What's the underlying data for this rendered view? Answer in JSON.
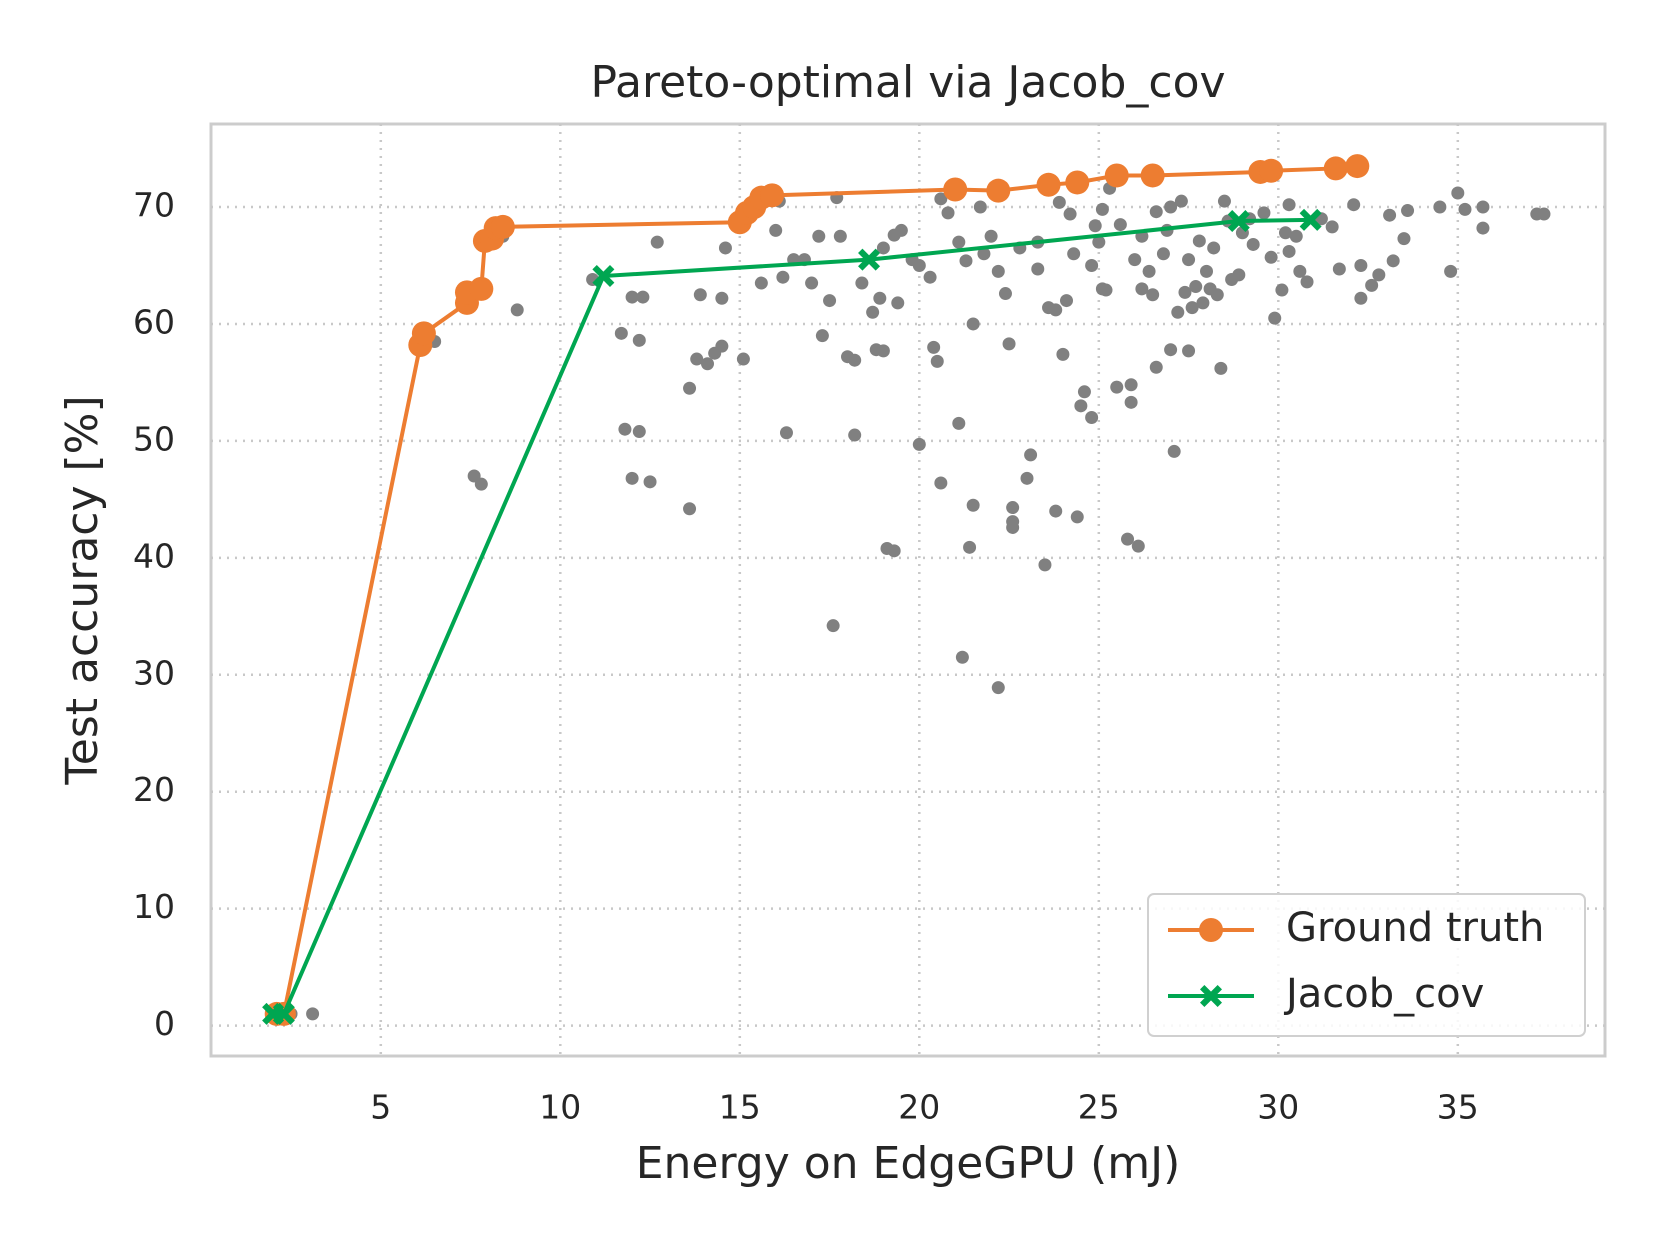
{
  "chart_data": {
    "type": "line",
    "title": "Pareto-optimal via Jacob_cov",
    "xlabel": "Energy on EdgeGPU (mJ)",
    "ylabel": "Test accuracy [%]",
    "xlim": [
      0.27,
      39.1
    ],
    "ylim": [
      -2.6,
      77.1
    ],
    "xticks": [
      5,
      10,
      15,
      20,
      25,
      30,
      35
    ],
    "yticks": [
      0,
      10,
      20,
      30,
      40,
      50,
      60,
      70
    ],
    "grid": true,
    "legend": "lower right",
    "points": {
      "color": "#808080",
      "x": [
        2.5,
        3.1,
        6.5,
        7.6,
        7.8,
        8.8,
        8.4,
        10.9,
        11.7,
        11.8,
        12,
        12.2,
        12.2,
        12,
        12.5,
        12.3,
        12.7,
        13.6,
        13.6,
        13.8,
        13.9,
        14.1,
        14.3,
        14.5,
        14.5,
        14.6,
        15.1,
        15.6,
        16,
        16.2,
        16.3,
        16.5,
        16.8,
        17,
        17.2,
        17.3,
        17.5,
        17.6,
        17.7,
        17.8,
        18,
        18.2,
        18.2,
        18.4,
        18.7,
        18.8,
        18.9,
        19,
        19,
        19.1,
        19.3,
        19.3,
        19.4,
        19.5,
        19.8,
        20,
        20,
        20.3,
        20.4,
        20.5,
        20.8,
        20.6,
        21.1,
        21.2,
        21.3,
        21.4,
        21.5,
        21.5,
        21.7,
        21.8,
        22,
        22.2,
        22.2,
        22.4,
        22.5,
        22.6,
        22.6,
        22.6,
        22.8,
        23,
        23.1,
        23.3,
        23.3,
        23.5,
        23.6,
        23.8,
        23.8,
        24,
        24.1,
        24.2,
        24.3,
        24.4,
        24.5,
        24.6,
        24.8,
        24.8,
        25,
        25.1,
        25.2,
        25.3,
        25.5,
        25.6,
        25.9,
        25.9,
        25.8,
        26.1,
        26.2,
        26.2,
        26.4,
        26.6,
        26.6,
        26.8,
        26.9,
        27,
        27.1,
        27.2,
        27.3,
        27.4,
        27.5,
        27.5,
        27.6,
        27.7,
        27.8,
        28,
        28.2,
        28.3,
        28.4,
        28.5,
        28.7,
        29,
        29.2,
        29.3,
        29.6,
        29.8,
        29.9,
        30.1,
        30.3,
        30.3,
        30.5,
        30.8,
        31.2,
        31.7,
        32.1,
        32.3,
        32.3,
        32.6,
        32.8,
        33.1,
        33.2,
        33.5,
        33.6,
        34.5,
        34.8,
        35,
        35.2,
        35.7,
        35.7,
        37.2,
        37.4,
        16.1,
        20.6,
        21.1,
        25.1,
        26.5,
        27.9,
        28.1,
        28.9,
        30.6,
        31.5,
        24.9,
        23.9,
        26.0,
        27.0,
        28.6,
        30.2
      ],
      "values": [
        1,
        1,
        58.5,
        47,
        46.3,
        61.2,
        67.5,
        63.8,
        59.2,
        51,
        62.3,
        58.6,
        50.8,
        46.8,
        46.5,
        62.3,
        67,
        54.5,
        44.2,
        57,
        62.5,
        56.6,
        57.5,
        58.1,
        62.2,
        66.5,
        57,
        63.5,
        68,
        64,
        50.7,
        65.5,
        65.5,
        63.5,
        67.5,
        59,
        62,
        34.2,
        70.8,
        67.5,
        57.2,
        56.9,
        50.5,
        63.5,
        61,
        57.8,
        62.2,
        57.7,
        66.5,
        40.8,
        40.6,
        67.6,
        61.8,
        68,
        65.5,
        65,
        49.7,
        64,
        58,
        56.8,
        69.5,
        46.4,
        51.5,
        31.5,
        65.4,
        40.9,
        60,
        44.5,
        70,
        66,
        67.5,
        64.5,
        28.9,
        62.6,
        58.3,
        44.3,
        43.1,
        42.6,
        66.5,
        46.8,
        48.8,
        67,
        64.7,
        39.4,
        61.4,
        61.2,
        44,
        57.4,
        62,
        69.4,
        66,
        43.5,
        53,
        54.2,
        65,
        52,
        67,
        69.8,
        62.9,
        71.6,
        54.6,
        68.5,
        54.8,
        53.3,
        41.6,
        41,
        67.5,
        63,
        64.5,
        56.3,
        69.6,
        66,
        68,
        57.8,
        49.1,
        61,
        70.5,
        62.7,
        65.5,
        57.7,
        61.4,
        63.2,
        67.1,
        64.5,
        66.5,
        62.5,
        56.2,
        70.5,
        63.8,
        67.8,
        69,
        66.8,
        69.5,
        65.7,
        60.5,
        62.9,
        66.2,
        70.2,
        67.5,
        63.6,
        69,
        64.7,
        70.2,
        62.2,
        65,
        63.3,
        64.2,
        69.3,
        65.4,
        67.3,
        69.7,
        70,
        64.5,
        71.2,
        69.8,
        70,
        68.2,
        69.4,
        69.4,
        70.5,
        70.7,
        67,
        63,
        62.5,
        61.8,
        63,
        64.2,
        64.5,
        68.3,
        68.4,
        70.4,
        65.5,
        70,
        68.8,
        67.8
      ]
    },
    "series": [
      {
        "name": "Ground truth",
        "color": "#ed7d31",
        "marker": "o",
        "x": [
          2.1,
          2.3,
          6.1,
          6.2,
          7.4,
          7.4,
          7.8,
          7.9,
          8.1,
          8.2,
          8.4,
          15.0,
          15.2,
          15.4,
          15.6,
          15.9,
          21.0,
          22.2,
          23.6,
          24.4,
          25.5,
          26.5,
          29.5,
          29.8,
          31.6,
          32.2
        ],
        "values": [
          1,
          1,
          58.2,
          59.2,
          61.8,
          62.7,
          63,
          67.1,
          67.3,
          68.2,
          68.3,
          68.7,
          69.5,
          70.0,
          70.8,
          71.0,
          71.5,
          71.4,
          71.9,
          72.1,
          72.7,
          72.7,
          73.0,
          73.1,
          73.3,
          73.5
        ]
      },
      {
        "name": "Jacob_cov",
        "color": "#00a651",
        "marker": "X",
        "x": [
          2.0,
          2.3,
          11.2,
          18.6,
          28.9,
          30.9
        ],
        "values": [
          1,
          1,
          64.1,
          65.5,
          68.8,
          68.9
        ]
      }
    ]
  }
}
